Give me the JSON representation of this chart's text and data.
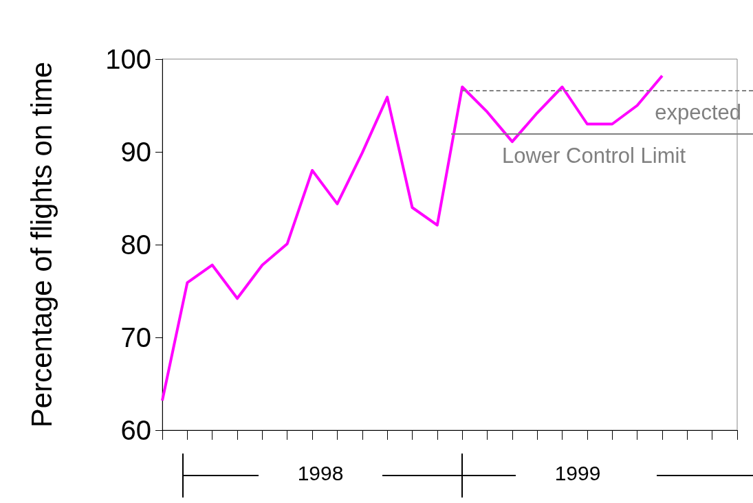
{
  "chart_data": {
    "type": "line",
    "ylabel": "Percentage of flights on time",
    "categories": [
      null,
      null,
      null,
      null,
      null,
      null,
      null,
      null,
      null,
      null,
      null,
      null,
      null,
      null,
      null,
      null,
      null,
      null,
      null,
      null,
      null,
      null,
      null,
      null
    ],
    "series": [
      {
        "color": "#ff00ff",
        "values": [
          63.2,
          75.9,
          77.8,
          74.2,
          77.8,
          80.1,
          88,
          84.4,
          89.9,
          95.9,
          84,
          82.1,
          97,
          94.3,
          91.1,
          94.2,
          97,
          93,
          93,
          95,
          98.2,
          null,
          null,
          null
        ]
      }
    ],
    "ylim": [
      60,
      100
    ],
    "yticks": [
      60,
      70,
      80,
      90,
      100
    ],
    "grid": false,
    "marker": "none",
    "line_style": "solid",
    "ref_lines": [
      {
        "axis": "y",
        "value": 96.6,
        "label": "expected",
        "color": "#808080",
        "line_style": "dashed"
      },
      {
        "axis": "y",
        "value": 91.9,
        "label": "Lower Control Limit",
        "color": "#808080",
        "line_style": "solid"
      }
    ],
    "annotations": [
      "1998",
      "1999"
    ]
  }
}
